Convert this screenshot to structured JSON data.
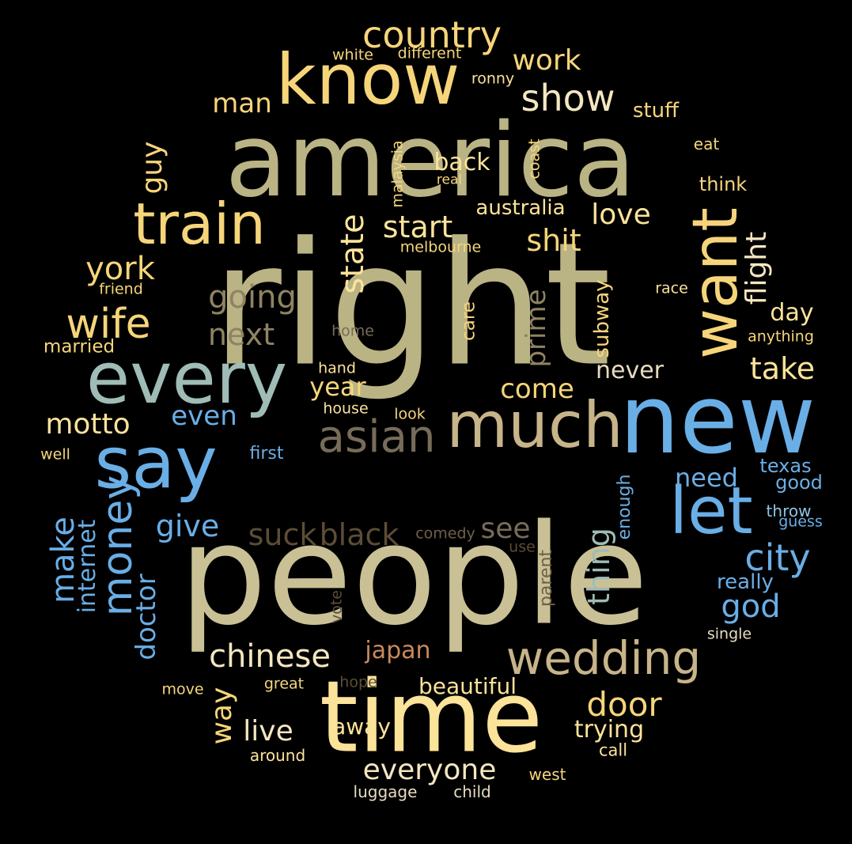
{
  "words": [
    {
      "text": "right"
    },
    {
      "text": "people"
    },
    {
      "text": "america"
    },
    {
      "text": "new"
    },
    {
      "text": "time"
    },
    {
      "text": "know"
    },
    {
      "text": "every"
    },
    {
      "text": "say"
    },
    {
      "text": "much"
    },
    {
      "text": "let"
    },
    {
      "text": "want"
    },
    {
      "text": "train"
    },
    {
      "text": "wedding"
    },
    {
      "text": "asian"
    },
    {
      "text": "country"
    },
    {
      "text": "show"
    },
    {
      "text": "work"
    },
    {
      "text": "man"
    },
    {
      "text": "stuff"
    },
    {
      "text": "eat"
    },
    {
      "text": "think"
    },
    {
      "text": "white"
    },
    {
      "text": "different"
    },
    {
      "text": "ronny"
    },
    {
      "text": "guy"
    },
    {
      "text": "back"
    },
    {
      "text": "malaysia"
    },
    {
      "text": "real"
    },
    {
      "text": "coast"
    },
    {
      "text": "start"
    },
    {
      "text": "australia"
    },
    {
      "text": "love"
    },
    {
      "text": "flight"
    },
    {
      "text": "state"
    },
    {
      "text": "shit"
    },
    {
      "text": "melbourne"
    },
    {
      "text": "york"
    },
    {
      "text": "friend"
    },
    {
      "text": "going"
    },
    {
      "text": "race"
    },
    {
      "text": "wife"
    },
    {
      "text": "next"
    },
    {
      "text": "prime"
    },
    {
      "text": "subway"
    },
    {
      "text": "care"
    },
    {
      "text": "day"
    },
    {
      "text": "married"
    },
    {
      "text": "home"
    },
    {
      "text": "anything"
    },
    {
      "text": "take"
    },
    {
      "text": "never"
    },
    {
      "text": "hand"
    },
    {
      "text": "year"
    },
    {
      "text": "come"
    },
    {
      "text": "motto"
    },
    {
      "text": "even"
    },
    {
      "text": "house"
    },
    {
      "text": "look"
    },
    {
      "text": "well"
    },
    {
      "text": "first"
    },
    {
      "text": "texas"
    },
    {
      "text": "need"
    },
    {
      "text": "good"
    },
    {
      "text": "enough"
    },
    {
      "text": "throw"
    },
    {
      "text": "guess"
    },
    {
      "text": "make"
    },
    {
      "text": "money"
    },
    {
      "text": "internet"
    },
    {
      "text": "give"
    },
    {
      "text": "suck"
    },
    {
      "text": "black"
    },
    {
      "text": "comedy"
    },
    {
      "text": "see"
    },
    {
      "text": "use"
    },
    {
      "text": "thing"
    },
    {
      "text": "city"
    },
    {
      "text": "doctor"
    },
    {
      "text": "vote"
    },
    {
      "text": "parent"
    },
    {
      "text": "really"
    },
    {
      "text": "god"
    },
    {
      "text": "single"
    },
    {
      "text": "chinese"
    },
    {
      "text": "japan"
    },
    {
      "text": "move"
    },
    {
      "text": "great"
    },
    {
      "text": "hope"
    },
    {
      "text": "beautiful"
    },
    {
      "text": "door"
    },
    {
      "text": "way"
    },
    {
      "text": "live"
    },
    {
      "text": "away"
    },
    {
      "text": "trying"
    },
    {
      "text": "call"
    },
    {
      "text": "around"
    },
    {
      "text": "everyone"
    },
    {
      "text": "west"
    },
    {
      "text": "luggage"
    },
    {
      "text": "child"
    }
  ]
}
